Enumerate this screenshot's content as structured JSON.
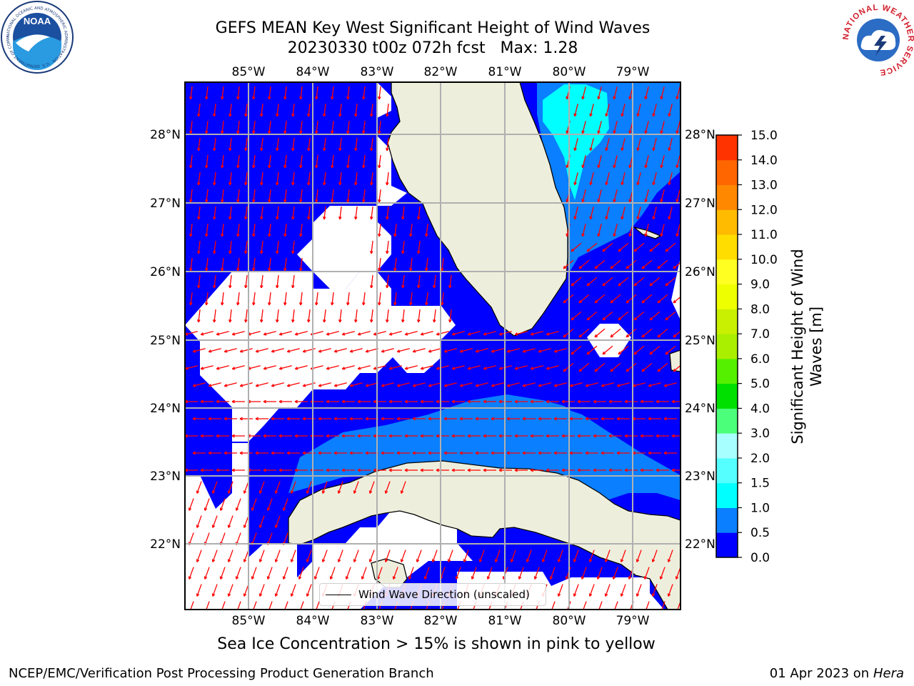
{
  "title": {
    "line1": "GEFS MEAN Key West Significant Height of Wind Waves",
    "line2": "20230330 t00z 072h fcst   Max: 1.28"
  },
  "longitude_labels": [
    "85°W",
    "84°W",
    "83°W",
    "82°W",
    "81°W",
    "80°W",
    "79°W"
  ],
  "latitude_labels": [
    "28°N",
    "27°N",
    "26°N",
    "25°N",
    "24°N",
    "23°N",
    "22°N"
  ],
  "map_legend": {
    "line_label": "Wind Wave Direction (unscaled)"
  },
  "colorbar": {
    "title": "Significant Height of Wind Waves [m]",
    "title_line1": "Significant Height of Wind",
    "title_line2": "Waves [m]",
    "ticks": [
      "0.0",
      "0.5",
      "1.0",
      "1.5",
      "2.0",
      "3.0",
      "4.0",
      "5.0",
      "6.0",
      "7.0",
      "8.0",
      "9.0",
      "10.0",
      "11.0",
      "12.0",
      "13.0",
      "14.0",
      "15.0"
    ],
    "colors": [
      "#0000ff",
      "#0a7fff",
      "#00ffff",
      "#55ffff",
      "#a8ffff",
      "#4cff7a",
      "#00e000",
      "#55f000",
      "#aaee00",
      "#c8f000",
      "#eeff00",
      "#ffff22",
      "#ffdd00",
      "#ffbb00",
      "#ff8800",
      "#ff6600",
      "#ff3300",
      "#ff0000"
    ]
  },
  "colors": {
    "land": "#eeeedd",
    "open_water": "#ffffff",
    "wave_low": "#0000ff",
    "wave_mid": "#0a7fff",
    "wave_high": "#00ffff",
    "arrows": "#ff0000",
    "grid": "#b0b0b0"
  },
  "caption": "Sea Ice Concentration > 15% is shown in pink to yellow",
  "footer": {
    "left": "NCEP/EMC/Verification Post Processing Product Generation Branch",
    "right_date": "01 Apr 2023 on ",
    "right_host": "Hera"
  },
  "logos": {
    "noaa": {
      "text": "NOAA",
      "ring_text": "NATIONAL OCEANIC AND ATMOSPHERIC ADMINISTRATION · U.S. DEPARTMENT OF COMMERCE"
    },
    "nws": {
      "ring_text": "NATIONAL WEATHER SERVICE"
    }
  }
}
